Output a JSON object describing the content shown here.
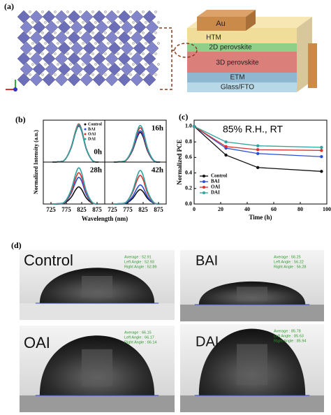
{
  "panel_labels": [
    "(a)",
    "(b)",
    "(c)",
    "(d)"
  ],
  "device_layers": [
    "Au",
    "HTM",
    "2D perovskite",
    "3D perovskite",
    "ETM",
    "Glass/FTO"
  ],
  "chart_data": [
    {
      "type": "line",
      "ylabel": "Normalized Intensity (a.u.)",
      "xlabel": "Wavelength (nm)",
      "x": [
        730,
        750,
        770,
        790,
        805,
        815,
        825,
        840,
        860,
        880
      ],
      "xlim": [
        700,
        900
      ],
      "ylim": [
        0,
        1.1
      ],
      "xticks": [
        725,
        775,
        825,
        875
      ],
      "series": [
        {
          "name": "Control",
          "color": "#111111"
        },
        {
          "name": "BAI",
          "color": "#2a4fd6"
        },
        {
          "name": "OAI",
          "color": "#d8312e"
        },
        {
          "name": "DAI",
          "color": "#2fa5a0"
        }
      ],
      "subplots": [
        {
          "label": "0h",
          "values": [
            [
              0,
              0.01,
              0.06,
              0.36,
              0.78,
              0.95,
              0.81,
              0.34,
              0.04,
              0
            ],
            [
              0,
              0.01,
              0.06,
              0.37,
              0.8,
              0.97,
              0.82,
              0.35,
              0.04,
              0
            ],
            [
              0,
              0.01,
              0.06,
              0.38,
              0.82,
              1.0,
              0.85,
              0.36,
              0.04,
              0
            ],
            [
              0,
              0.01,
              0.06,
              0.37,
              0.8,
              0.98,
              0.83,
              0.35,
              0.04,
              0
            ]
          ]
        },
        {
          "label": "16h",
          "values": [
            [
              0,
              0.01,
              0.05,
              0.3,
              0.64,
              0.78,
              0.66,
              0.28,
              0.03,
              0
            ],
            [
              0,
              0.01,
              0.05,
              0.31,
              0.67,
              0.82,
              0.7,
              0.3,
              0.03,
              0
            ],
            [
              0,
              0.01,
              0.05,
              0.34,
              0.74,
              0.9,
              0.77,
              0.32,
              0.04,
              0
            ],
            [
              0,
              0.01,
              0.06,
              0.36,
              0.79,
              0.96,
              0.82,
              0.35,
              0.04,
              0
            ]
          ]
        },
        {
          "label": "28h",
          "values": [
            [
              0,
              0,
              0.03,
              0.17,
              0.37,
              0.45,
              0.38,
              0.16,
              0.02,
              0
            ],
            [
              0,
              0.01,
              0.04,
              0.27,
              0.57,
              0.7,
              0.6,
              0.25,
              0.03,
              0
            ],
            [
              0,
              0.01,
              0.05,
              0.31,
              0.67,
              0.82,
              0.7,
              0.3,
              0.03,
              0
            ],
            [
              0,
              0.01,
              0.06,
              0.36,
              0.78,
              0.95,
              0.81,
              0.34,
              0.04,
              0
            ]
          ]
        },
        {
          "label": "42h",
          "values": [
            [
              0,
              0,
              0.02,
              0.14,
              0.31,
              0.38,
              0.32,
              0.14,
              0.02,
              0
            ],
            [
              0,
              0.01,
              0.03,
              0.19,
              0.41,
              0.5,
              0.43,
              0.18,
              0.02,
              0
            ],
            [
              0,
              0.01,
              0.05,
              0.29,
              0.62,
              0.75,
              0.64,
              0.27,
              0.03,
              0
            ],
            [
              0,
              0.01,
              0.05,
              0.33,
              0.72,
              0.88,
              0.75,
              0.32,
              0.04,
              0
            ]
          ]
        }
      ]
    },
    {
      "type": "line",
      "annotation": "85% R.H., RT",
      "xlabel": "Time (h)",
      "ylabel": "Normalized PCE",
      "x": [
        0,
        24,
        48,
        96
      ],
      "xlim": [
        0,
        100
      ],
      "ylim": [
        0,
        1.08
      ],
      "xticks": [
        0,
        20,
        40,
        60,
        80,
        100
      ],
      "yticks": [
        {
          "value": 0,
          "label": "0.0"
        },
        0.2,
        0.4,
        0.6,
        0.8,
        {
          "value": 1,
          "label": "1.0"
        }
      ],
      "series": [
        {
          "name": "Control",
          "color": "#111111",
          "values": [
            1.0,
            0.63,
            0.47,
            0.42
          ]
        },
        {
          "name": "BAI",
          "color": "#2a4fd6",
          "values": [
            1.0,
            0.72,
            0.65,
            0.61
          ]
        },
        {
          "name": "OAI",
          "color": "#d8312e",
          "values": [
            1.0,
            0.74,
            0.7,
            0.69
          ]
        },
        {
          "name": "DAI",
          "color": "#2fa5a0",
          "values": [
            1.0,
            0.8,
            0.75,
            0.73
          ]
        }
      ]
    }
  ],
  "contact_angle": [
    {
      "label": "Control",
      "lines": [
        "Average : 52.91",
        "Left Angle : 52.93",
        "Right Angle : 52.89"
      ]
    },
    {
      "label": "BAI",
      "lines": [
        "Average : 56.25",
        "Left Angle : 56.22",
        "Right Angle : 56.28"
      ]
    },
    {
      "label": "OAI",
      "lines": [
        "Average : 66.15",
        "Left Angle : 66.17",
        "Right Angle : 66.14"
      ]
    },
    {
      "label": "DAI",
      "lines": [
        "Average : 85.78",
        "Left Angle : 85.63",
        "Right Angle : 85.94"
      ]
    }
  ]
}
